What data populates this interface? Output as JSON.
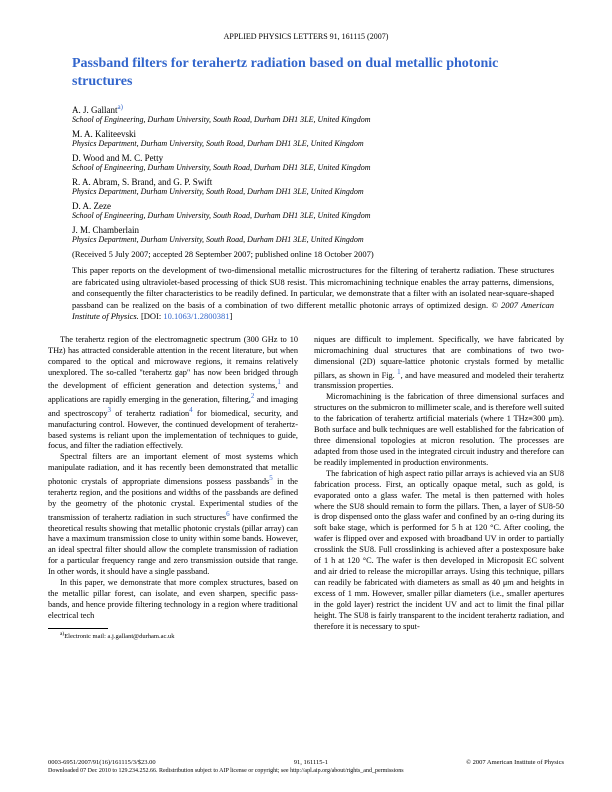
{
  "journal_header": "APPLIED PHYSICS LETTERS 91, 161115 (2007)",
  "title": "Passband filters for terahertz radiation based on dual metallic photonic structures",
  "author_groups": [
    {
      "names": "A. J. Gallant",
      "sup": "a)",
      "affiliation": "School of Engineering, Durham University, South Road, Durham DH1 3LE, United Kingdom"
    },
    {
      "names": "M. A. Kaliteevski",
      "sup": "",
      "affiliation": "Physics Department, Durham University, South Road, Durham DH1 3LE, United Kingdom"
    },
    {
      "names": "D. Wood and M. C. Petty",
      "sup": "",
      "affiliation": "School of Engineering, Durham University, South Road, Durham DH1 3LE, United Kingdom"
    },
    {
      "names": "R. A. Abram, S. Brand, and G. P. Swift",
      "sup": "",
      "affiliation": "Physics Department, Durham University, South Road, Durham DH1 3LE, United Kingdom"
    },
    {
      "names": "D. A. Zeze",
      "sup": "",
      "affiliation": "School of Engineering, Durham University, South Road, Durham DH1 3LE, United Kingdom"
    },
    {
      "names": "J. M. Chamberlain",
      "sup": "",
      "affiliation": "Physics Department, Durham University, South Road, Durham DH1 3LE, United Kingdom"
    }
  ],
  "dates": "(Received 5 July 2007; accepted 28 September 2007; published online 18 October 2007)",
  "abstract": {
    "text": "This paper reports on the development of two-dimensional metallic microstructures for the filtering of terahertz radiation. These structures are fabricated using ultraviolet-based processing of thick SU8 resist. This micromachining technique enables the array patterns, dimensions, and consequently the filter characteristics to be readily defined. In particular, we demonstrate that a filter with an isolated near-square-shaped passband can be realized on the basis of a combination of two different metallic photonic arrays of optimized design. ",
    "copyright": "© 2007 American Institute of Physics.",
    "doi_label": "[DOI: ",
    "doi": "10.1063/1.2800381",
    "doi_close": "]"
  },
  "body": {
    "p1a": "The terahertz region of the electromagnetic spectrum (300 GHz to 10 THz) has attracted considerable attention in the recent literature, but when compared to the optical and microwave regions, it remains relatively unexplored. The so-called \"terahertz gap\" has now been bridged through the development of efficient generation and detection systems,",
    "p1b": " and applications are rapidly emerging in the generation, filtering,",
    "p1c": " and imaging and spectroscopy",
    "p1d": " of terahertz radiation",
    "p1e": " for biomedical, security, and manufacturing control. However, the continued development of terahertz-based systems is reliant upon the implementation of techniques to guide, focus, and filter the radiation effectively.",
    "p2a": "Spectral filters are an important element of most systems which manipulate radiation, and it has recently been demonstrated that metallic photonic crystals of appropriate dimensions possess passbands",
    "p2b": " in the terahertz region, and the positions and widths of the passbands are defined by the geometry of the photonic crystal. Experimental studies of the transmission of terahertz radiation in such structures",
    "p2c": " have confirmed the theoretical results showing that metallic photonic crystals (pillar array) can have a maximum transmission close to unity within some bands. However, an ideal spectral filter should allow the complete transmission of radiation for a particular frequency range and zero transmission outside that range. In other words, it should have a single passband.",
    "p3": "In this paper, we demonstrate that more complex structures, based on the metallic pillar forest, can isolate, and even sharpen, specific pass-bands, and hence provide filtering technology in a region where traditional electrical tech",
    "p4a": "niques are difficult to implement. Specifically, we have fabricated by micromachining dual structures that are combinations of two two-dimensional (2D) square-lattice photonic crystals formed by metallic pillars, as shown in Fig. ",
    "p4b": ", and have measured and modeled their terahertz transmission properties.",
    "p5": "Micromachining is the fabrication of three dimensional surfaces and structures on the submicron to millimeter scale, and is therefore well suited to the fabrication of terahertz artificial materials (where 1 THz≡300 μm). Both surface and bulk techniques are well established for the fabrication of three dimensional topologies at micron resolution. The processes are adapted from those used in the integrated circuit industry and therefore can be readily implemented in production environments.",
    "p6": "The fabrication of high aspect ratio pillar arrays is achieved via an SU8 fabrication process. First, an optically opaque metal, such as gold, is evaporated onto a glass wafer. The metal is then patterned with holes where the SU8 should remain to form the pillars. Then, a layer of SU8-50 is drop dispensed onto the glass wafer and confined by an o-ring during its soft bake stage, which is performed for 5 h at 120 °C. After cooling, the wafer is flipped over and exposed with broadband UV in order to partially crosslink the SU8. Full crosslinking is achieved after a postexposure bake of 1 h at 120 °C. The wafer is then developed in Microposit EC solvent and air dried to release the micropillar arrays. Using this technique, pillars can readily be fabricated with diameters as small as 40 μm and heights in excess of 1 mm. However, smaller pillar diameters (i.e., smaller apertures in the gold layer) restrict the incident UV and act to limit the final pillar height. The SU8 is fairly transparent to the incident terahertz radiation, and therefore it is necessary to sput-"
  },
  "footnote": {
    "label": "a)",
    "text": "Electronic mail: a.j.gallant@durham.ac.uk"
  },
  "footer": {
    "left": "0003-6951/2007/91(16)/161115/3/$23.00",
    "center": "91, 161115-1",
    "right": "© 2007 American Institute of Physics",
    "line2": "Downloaded 07 Dec 2010 to 129.234.252.66. Redistribution subject to AIP license or copyright; see http://apl.aip.org/about/rights_and_permissions"
  }
}
